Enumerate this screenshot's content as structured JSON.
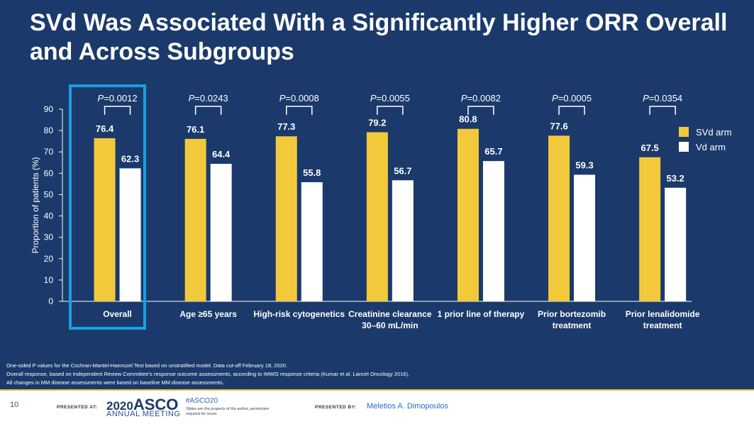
{
  "title": "SVd Was Associated With a Significantly Higher ORR Overall and Across Subgroups",
  "chart_data": {
    "type": "bar",
    "ylabel": "Proportion of patients (%)",
    "ylim": [
      0,
      90
    ],
    "yticks": [
      0,
      10,
      20,
      30,
      40,
      50,
      60,
      70,
      80,
      90
    ],
    "categories": [
      {
        "line1": "Overall",
        "line2": ""
      },
      {
        "line1": "Age ≥65 years",
        "line2": ""
      },
      {
        "line1": "High-risk cytogenetics",
        "line2": ""
      },
      {
        "line1": "Creatinine clearance",
        "line2": "30–60 mL/min"
      },
      {
        "line1": "1 prior line of therapy",
        "line2": ""
      },
      {
        "line1": "Prior bortezomib",
        "line2": "treatment"
      },
      {
        "line1": "Prior lenalidomide",
        "line2": "treatment"
      }
    ],
    "series": [
      {
        "name": "SVd arm",
        "color": "#f2c93b",
        "values": [
          76.4,
          76.1,
          77.3,
          79.2,
          80.8,
          77.6,
          67.5
        ],
        "labels": [
          "76.4",
          "76.1",
          "77.3",
          "79.2",
          "80.8",
          "77.6",
          "67.5"
        ]
      },
      {
        "name": "Vd arm",
        "color": "#ffffff",
        "values": [
          62.3,
          64.4,
          55.8,
          56.7,
          65.7,
          59.3,
          53.2
        ],
        "labels": [
          "62.3",
          "64.4",
          "55.8",
          "56.7",
          "65.7",
          "59.3",
          "53.2"
        ]
      }
    ],
    "p_values": [
      "=0.0012",
      "=0.0243",
      "=0.0008",
      "=0.0055",
      "=0.0082",
      "=0.0005",
      "=0.0354"
    ],
    "p_prefix": "P",
    "highlight_color": "#1a9fe0"
  },
  "footnotes": [
    "One-sided P values for the Cochran-Mantel-Haenszel Test based on unstratified model. Data cut-off February 18, 2020.",
    "Overall response, based on Independent Review Committee’s response outcome assessments, according to IMWG response criteria (Kumar et al. Lancet Oncology 2016).",
    "All changes in MM disease assessments were based on baseline MM disease assessments."
  ],
  "footer": {
    "page_number": "10",
    "presented_at": "PRESENTED AT:",
    "logo_year": "2020",
    "logo_word": "ASCO",
    "logo_sub": "ANNUAL MEETING",
    "hashtag": "#ASCO20",
    "hashtag_note": "Slides are the property of the author, permission required for reuse.",
    "presented_by": "PRESENTED BY:",
    "presenter": "Meletios A. Dimopoulos"
  }
}
